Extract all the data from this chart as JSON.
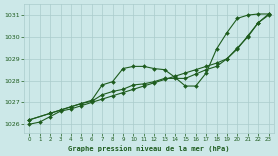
{
  "title": "Graphe pression niveau de la mer (hPa)",
  "ylim": [
    1025.6,
    1031.5
  ],
  "xlim": [
    -0.5,
    23.5
  ],
  "yticks": [
    1026,
    1027,
    1028,
    1029,
    1030,
    1031
  ],
  "xticks": [
    0,
    1,
    2,
    3,
    4,
    5,
    6,
    7,
    8,
    9,
    10,
    11,
    12,
    13,
    14,
    15,
    16,
    17,
    18,
    19,
    20,
    21,
    22,
    23
  ],
  "background_color": "#cce8e8",
  "grid_color": "#aacccc",
  "line_color": "#1e5c1e",
  "text_color": "#1e5c1e",
  "series1": [
    1026.2,
    null,
    1026.5,
    1026.65,
    1026.8,
    1026.95,
    1027.1,
    1027.8,
    1027.95,
    1028.55,
    1028.65,
    1028.65,
    1028.55,
    1028.5,
    1028.15,
    1027.75,
    1027.75,
    1028.35,
    1029.45,
    1030.2,
    1030.85,
    1031.0,
    1031.05,
    1031.05
  ],
  "series2": [
    1026.0,
    1026.1,
    1026.35,
    1026.6,
    1026.7,
    1026.85,
    1027.0,
    1027.15,
    1027.3,
    1027.45,
    1027.6,
    1027.75,
    1027.9,
    1028.05,
    1028.2,
    1028.35,
    1028.5,
    1028.65,
    1028.8,
    1029.0,
    1029.45,
    1030.05,
    1030.65,
    1031.0
  ],
  "series3": [
    1026.2,
    null,
    1026.5,
    1026.65,
    1026.8,
    1026.95,
    1027.05,
    1027.35,
    1027.5,
    1027.6,
    1027.8,
    1027.85,
    1027.95,
    1028.1,
    1028.1,
    1028.1,
    1028.3,
    1028.5,
    1028.65,
    1029.0,
    1029.5,
    1030.0,
    1030.65,
    1031.05
  ]
}
